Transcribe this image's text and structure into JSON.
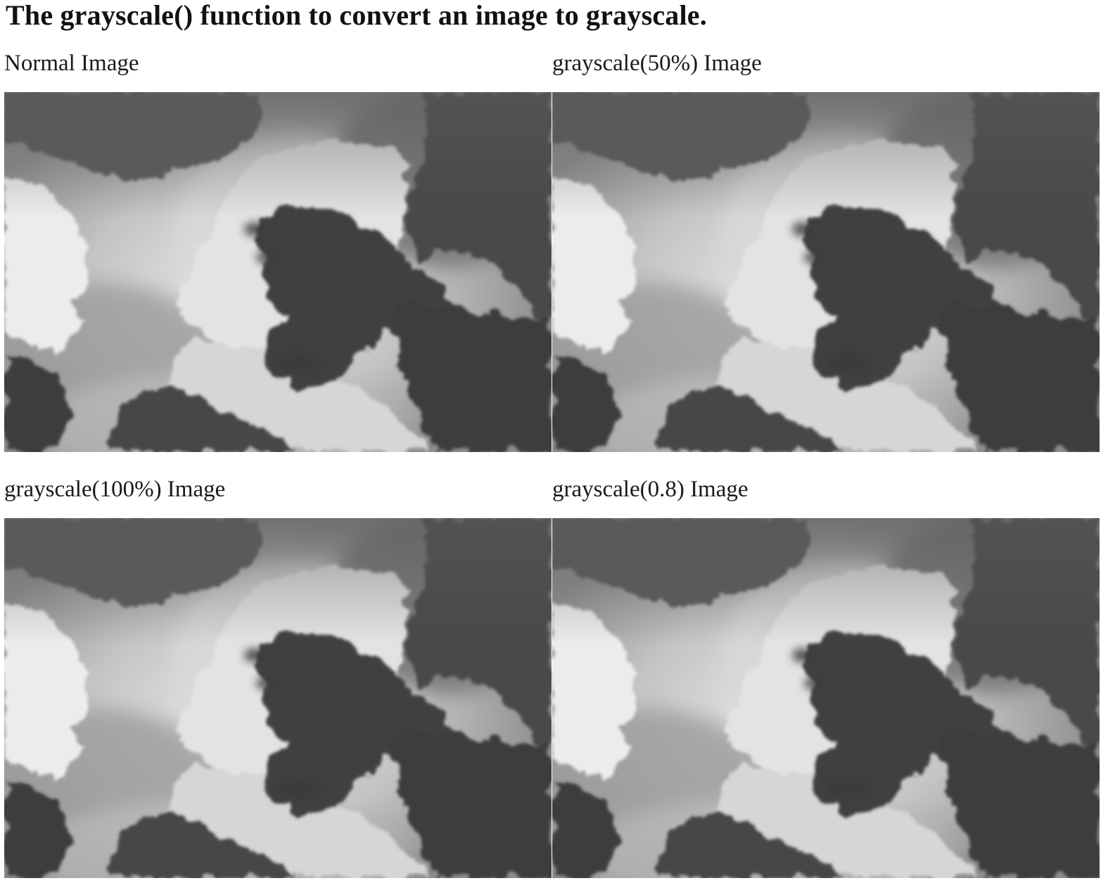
{
  "heading": "The grayscale() function to convert an image to grayscale.",
  "figures": [
    {
      "caption": "Normal Image"
    },
    {
      "caption": "grayscale(50%) Image"
    },
    {
      "caption": "grayscale(100%) Image"
    },
    {
      "caption": "grayscale(0.8) Image"
    }
  ],
  "image_subject": "cloudy-sky-photo",
  "colors": {
    "background": "#ffffff",
    "text": "#111111"
  }
}
